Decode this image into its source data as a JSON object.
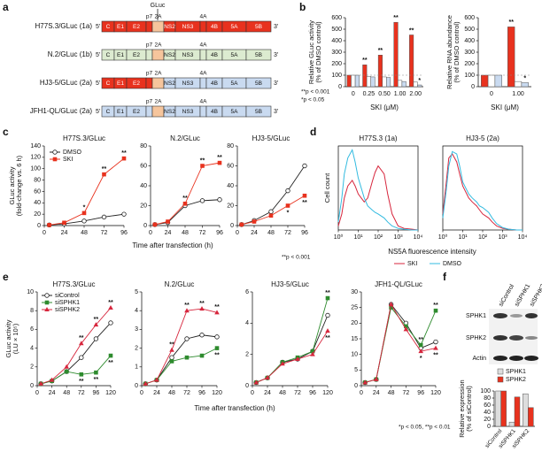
{
  "panel_letters": [
    "a",
    "b",
    "c",
    "d",
    "e",
    "f"
  ],
  "genome": {
    "ends": [
      "5'",
      "3'"
    ],
    "segments": [
      "C",
      "E1",
      "E2",
      "p7",
      "2A",
      "NS2",
      "NS3",
      "4A",
      "4B",
      "5A",
      "5B"
    ],
    "gluc_label": "GLuc",
    "rows": [
      {
        "label": "H77S.3/GLuc (1a)",
        "structural_color": "#e8321e",
        "nonstructural_color": "#e8321e"
      },
      {
        "label": "N.2/GLuc (1b)",
        "structural_color": "#dcebd0",
        "nonstructural_color": "#dcebd0"
      },
      {
        "label": "HJ3-5/GLuc (2a)",
        "structural_color": "#e8321e",
        "nonstructural_color": "#c9daf0"
      },
      {
        "label": "JFH1-QL/GLuc (2a)",
        "structural_color": "#c9daf0",
        "nonstructural_color": "#c9daf0"
      }
    ],
    "insert_color": "#f6c59c"
  },
  "blot": {
    "rows": [
      "SPHK1",
      "SPHK2",
      "Actin"
    ]
  },
  "chart_data": [
    {
      "type": "bar",
      "ylabel": [
        "Relative GLuc activity",
        "(% of DMSO control)"
      ],
      "xlabel": "SKI (μM)",
      "categories": [
        "0",
        "0.25",
        "0.50",
        "1.00",
        "2.00"
      ],
      "series": [
        {
          "color": "#e8321e",
          "values": [
            100,
            190,
            275,
            560,
            450
          ],
          "significance": [
            null,
            "**",
            "**",
            "**",
            "**"
          ]
        },
        {
          "color": "#ffffff",
          "values": [
            100,
            90,
            85,
            55,
            40
          ]
        },
        {
          "color": "#c9daf0",
          "values": [
            100,
            85,
            80,
            45,
            15
          ],
          "significance": [
            null,
            null,
            null,
            null,
            "*"
          ]
        }
      ],
      "ylim": [
        0,
        600
      ],
      "yticks": [
        0,
        100,
        200,
        300,
        400,
        500,
        600
      ],
      "reference_line": 100,
      "footnotes": [
        "**p < 0.001",
        "*p < 0.05"
      ]
    },
    {
      "type": "bar",
      "ylabel": [
        "Relative RNA abundance",
        "(% of DMSO control)"
      ],
      "xlabel": "SKI (μM)",
      "categories": [
        "0",
        "1.00"
      ],
      "series": [
        {
          "color": "#e8321e",
          "values": [
            100,
            520
          ],
          "significance": [
            null,
            "**"
          ]
        },
        {
          "color": "#ffffff",
          "values": [
            100,
            45
          ]
        },
        {
          "color": "#c9daf0",
          "values": [
            100,
            35
          ],
          "significance": [
            null,
            "*"
          ]
        }
      ],
      "ylim": [
        0,
        600
      ],
      "yticks": [
        0,
        100,
        200,
        300,
        400,
        500,
        600
      ],
      "reference_line": 100
    },
    {
      "type": "line",
      "title": "H77S.3/GLuc",
      "ylabel": [
        "GLuc activity",
        "(fold-change vs. 6 h)"
      ],
      "x": [
        6,
        24,
        48,
        72,
        96
      ],
      "xlim": [
        0,
        96
      ],
      "xticks": [
        0,
        24,
        48,
        72,
        96
      ],
      "ylim": [
        0,
        140
      ],
      "yticks": [
        0,
        20,
        40,
        60,
        80,
        100,
        120,
        140
      ],
      "series": [
        {
          "name": "DMSO",
          "color": "#222222",
          "marker": "circle",
          "values": [
            1,
            3,
            8,
            15,
            20
          ]
        },
        {
          "name": "SKI",
          "color": "#e8321e",
          "marker": "square",
          "values": [
            1,
            5,
            22,
            90,
            118
          ],
          "significance": [
            null,
            null,
            "*",
            "**",
            "**"
          ]
        }
      ]
    },
    {
      "type": "line",
      "title": "N.2/GLuc",
      "xlabel": "Time after transfection (h)",
      "x": [
        6,
        24,
        48,
        72,
        96
      ],
      "xlim": [
        0,
        96
      ],
      "xticks": [
        0,
        24,
        48,
        72,
        96
      ],
      "ylim": [
        0,
        80
      ],
      "yticks": [
        0,
        20,
        40,
        60,
        80
      ],
      "series": [
        {
          "color": "#222222",
          "marker": "circle",
          "values": [
            1,
            3,
            20,
            25,
            26
          ]
        },
        {
          "color": "#e8321e",
          "marker": "square",
          "values": [
            1,
            4,
            22,
            60,
            63
          ],
          "significance": [
            null,
            null,
            "**",
            "**",
            "**"
          ]
        }
      ]
    },
    {
      "type": "line",
      "title": "HJ3-5/GLuc",
      "footnote": "**p < 0.001",
      "x": [
        6,
        24,
        48,
        72,
        96
      ],
      "xlim": [
        0,
        96
      ],
      "xticks": [
        0,
        24,
        48,
        72,
        96
      ],
      "ylim": [
        0,
        80
      ],
      "yticks": [
        0,
        20,
        40,
        60,
        80
      ],
      "series": [
        {
          "color": "#222222",
          "marker": "circle",
          "values": [
            1,
            5,
            14,
            35,
            60
          ]
        },
        {
          "color": "#e8321e",
          "marker": "square",
          "values": [
            1,
            4,
            10,
            20,
            30
          ],
          "significance": [
            null,
            null,
            null,
            "*",
            "**"
          ]
        }
      ]
    },
    {
      "type": "line",
      "title": "H77S.3 (1a)",
      "ylabel": [
        "Cell count"
      ],
      "xlabel": "NS5A fluorescence intensity",
      "xlog": true,
      "x": [
        1,
        1.5,
        2,
        3,
        5,
        7,
        10,
        20,
        30,
        50,
        70,
        100,
        200,
        300,
        500,
        1000,
        2000,
        5000,
        10000
      ],
      "xlim": [
        1,
        10000
      ],
      "xticks": [
        {
          "value": 1,
          "label": "10⁰"
        },
        {
          "value": 10,
          "label": "10¹"
        },
        {
          "value": 100,
          "label": "10²"
        },
        {
          "value": 1000,
          "label": "10³"
        },
        {
          "value": 10000,
          "label": "10⁴"
        }
      ],
      "ylim": [
        0,
        105
      ],
      "series": [
        {
          "name": "SKI",
          "color": "#d7263d",
          "values": [
            5,
            20,
            40,
            55,
            62,
            55,
            45,
            35,
            40,
            60,
            72,
            80,
            70,
            45,
            20,
            5,
            2,
            1,
            0
          ]
        },
        {
          "name": "DMSO",
          "color": "#33bbe0",
          "values": [
            10,
            40,
            70,
            90,
            100,
            85,
            65,
            40,
            30,
            25,
            22,
            20,
            15,
            10,
            5,
            2,
            1,
            0,
            0
          ]
        }
      ]
    },
    {
      "type": "line",
      "title": "HJ3-5 (2a)",
      "xlog": true,
      "x": [
        1,
        1.5,
        2,
        3,
        5,
        7,
        10,
        20,
        30,
        50,
        70,
        100,
        200,
        300,
        500,
        1000,
        2000,
        5000,
        10000
      ],
      "xlim": [
        1,
        10000
      ],
      "xticks": [
        {
          "value": 1,
          "label": "10⁰"
        },
        {
          "value": 10,
          "label": "10¹"
        },
        {
          "value": 100,
          "label": "10²"
        },
        {
          "value": 1000,
          "label": "10³"
        },
        {
          "value": 10000,
          "label": "10⁴"
        }
      ],
      "ylim": [
        0,
        105
      ],
      "series": [
        {
          "color": "#d7263d",
          "values": [
            20,
            60,
            90,
            95,
            85,
            70,
            55,
            40,
            35,
            30,
            25,
            20,
            15,
            10,
            5,
            2,
            1,
            0,
            0
          ]
        },
        {
          "color": "#33bbe0",
          "values": [
            15,
            50,
            80,
            98,
            95,
            80,
            60,
            45,
            40,
            35,
            30,
            28,
            22,
            15,
            8,
            3,
            1,
            0,
            0
          ]
        }
      ]
    },
    {
      "type": "line",
      "title": "H77S.3/GLuc",
      "ylabel": [
        "GLuc activity",
        "(LU × 10⁵)"
      ],
      "x": [
        6,
        24,
        48,
        72,
        96,
        120
      ],
      "xlim": [
        0,
        120
      ],
      "xticks": [
        0,
        24,
        48,
        72,
        96,
        120
      ],
      "ylim": [
        0,
        10
      ],
      "yticks": [
        0,
        2,
        4,
        6,
        8,
        10
      ],
      "series": [
        {
          "name": "siControl",
          "color": "#222222",
          "marker": "circle",
          "values": [
            0.2,
            0.5,
            1.5,
            3,
            5,
            6.7
          ]
        },
        {
          "name": "siSPHK1",
          "color": "#2e8b2e",
          "marker": "square",
          "values": [
            0.2,
            0.5,
            1.5,
            1.2,
            1.4,
            3.2
          ],
          "significance": [
            null,
            null,
            null,
            "**",
            "**",
            "**"
          ]
        },
        {
          "name": "siSPHK2",
          "color": "#d7263d",
          "marker": "triangle",
          "values": [
            0.2,
            0.6,
            2,
            4.5,
            6.5,
            8.3
          ],
          "significance": [
            null,
            null,
            null,
            "**",
            "**",
            "**"
          ]
        }
      ]
    },
    {
      "type": "line",
      "title": "N.2/GLuc",
      "xlabel": "Time after transfection (h)",
      "x": [
        6,
        24,
        48,
        72,
        96,
        120
      ],
      "xlim": [
        0,
        120
      ],
      "xticks": [
        0,
        24,
        48,
        72,
        96,
        120
      ],
      "ylim": [
        0,
        5
      ],
      "yticks": [
        0,
        1,
        2,
        3,
        4,
        5
      ],
      "series": [
        {
          "color": "#222222",
          "marker": "circle",
          "values": [
            0.1,
            0.3,
            1.5,
            2.5,
            2.7,
            2.6
          ]
        },
        {
          "color": "#2e8b2e",
          "marker": "square",
          "values": [
            0.1,
            0.3,
            1.3,
            1.5,
            1.6,
            2.0
          ],
          "significance": [
            null,
            null,
            null,
            null,
            null,
            "**"
          ]
        },
        {
          "color": "#d7263d",
          "marker": "triangle",
          "values": [
            0.1,
            0.3,
            1.9,
            4.0,
            4.1,
            3.9
          ],
          "significance": [
            null,
            null,
            "**",
            "**",
            "**",
            "**"
          ]
        }
      ]
    },
    {
      "type": "line",
      "title": "HJ3-5/GLuc",
      "x": [
        6,
        24,
        48,
        72,
        96,
        120
      ],
      "xlim": [
        0,
        120
      ],
      "xticks": [
        0,
        24,
        48,
        72,
        96,
        120
      ],
      "ylim": [
        0,
        6
      ],
      "yticks": [
        0,
        2,
        4,
        6
      ],
      "series": [
        {
          "color": "#222222",
          "marker": "circle",
          "values": [
            0.2,
            0.5,
            1.5,
            1.7,
            2.2,
            4.5
          ]
        },
        {
          "color": "#2e8b2e",
          "marker": "square",
          "values": [
            0.2,
            0.5,
            1.5,
            1.8,
            2.2,
            5.6
          ],
          "significance": [
            null,
            null,
            null,
            null,
            null,
            "**"
          ]
        },
        {
          "color": "#d7263d",
          "marker": "triangle",
          "values": [
            0.2,
            0.5,
            1.4,
            1.7,
            2.0,
            3.5
          ],
          "significance": [
            null,
            null,
            null,
            null,
            null,
            "**"
          ]
        }
      ]
    },
    {
      "type": "line",
      "title": "JFH1-QL/GLuc",
      "footnote": "*p < 0.05, **p < 0.01",
      "x": [
        6,
        24,
        48,
        72,
        96,
        120
      ],
      "xlim": [
        0,
        120
      ],
      "xticks": [
        0,
        24,
        48,
        72,
        96,
        120
      ],
      "ylim": [
        0,
        30
      ],
      "yticks": [
        0,
        5,
        10,
        15,
        20,
        25,
        30
      ],
      "series": [
        {
          "color": "#222222",
          "marker": "circle",
          "values": [
            1,
            2,
            26,
            20,
            12,
            14
          ]
        },
        {
          "color": "#2e8b2e",
          "marker": "square",
          "values": [
            1,
            2,
            25,
            19,
            13,
            24
          ],
          "significance": [
            null,
            null,
            null,
            null,
            "**",
            "**"
          ]
        },
        {
          "color": "#d7263d",
          "marker": "triangle",
          "values": [
            1,
            2,
            26,
            18,
            11,
            12
          ],
          "significance": [
            null,
            null,
            null,
            null,
            "*",
            "**"
          ]
        }
      ]
    },
    {
      "type": "bar",
      "ylabel": [
        "Relative expression",
        "(% of siControl)"
      ],
      "categories": [
        "siControl",
        "siSPHK1",
        "siSPHK2"
      ],
      "series": [
        {
          "name": "SPHK1",
          "color": "#dddddd",
          "values": [
            100,
            12,
            92
          ]
        },
        {
          "name": "SPHK2",
          "color": "#e8321e",
          "values": [
            100,
            83,
            53
          ]
        }
      ],
      "ylim": [
        0,
        100
      ],
      "yticks": [
        0,
        20,
        40,
        60,
        80,
        100
      ]
    }
  ]
}
